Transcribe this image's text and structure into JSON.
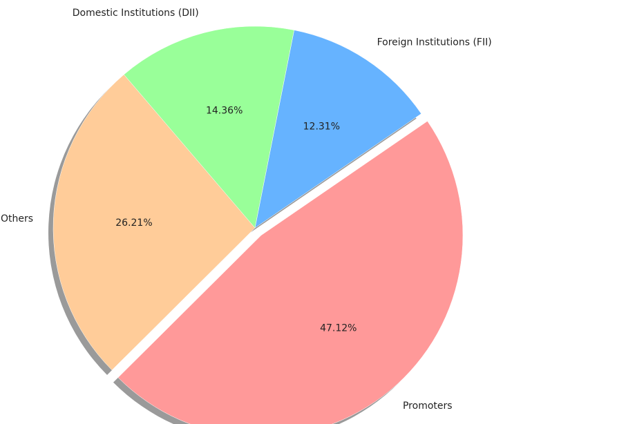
{
  "chart_data": {
    "type": "pie",
    "slices": [
      {
        "label": "Public & Others",
        "value": 26.21,
        "display": "26.21%",
        "color": "#ffcc99"
      },
      {
        "label": "Promoters",
        "value": 47.12,
        "display": "47.12%",
        "color": "#ff9999"
      },
      {
        "label": "Foreign Institutions (FII)",
        "value": 12.31,
        "display": "12.31%",
        "color": "#66b3ff"
      },
      {
        "label": "Domestic Institutions (DII)",
        "value": 14.36,
        "display": "14.36%",
        "color": "#99ff99"
      }
    ],
    "exploded_slice": "Promoters",
    "shadow": true,
    "legend": "none",
    "label_position": "outside",
    "percent_position": "inside"
  }
}
